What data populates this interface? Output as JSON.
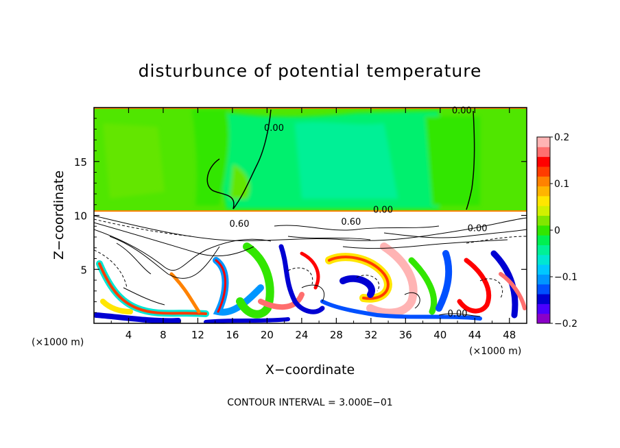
{
  "chart_data": {
    "type": "heatmap",
    "title": "disturbunce of potential temperature",
    "xlabel": "X−coordinate",
    "ylabel": "Z−coordinate",
    "x_unit_left": "(×1000 m)",
    "x_unit_right": "(×1000 m)",
    "footer": "CONTOUR INTERVAL = 3.000E−01",
    "xlim": [
      0,
      50
    ],
    "ylim": [
      0,
      20
    ],
    "x_ticks": [
      4,
      8,
      12,
      16,
      20,
      24,
      28,
      32,
      36,
      40,
      44,
      48
    ],
    "y_ticks": [
      5,
      10,
      15
    ],
    "colorbar": {
      "range": [
        -0.2,
        0.2
      ],
      "tick_values": [
        0.2,
        0.1,
        0,
        -0.1,
        -0.2
      ],
      "tick_labels": [
        "0.2",
        "0.1",
        "0",
        "−0.1",
        "−0.2"
      ],
      "colors": [
        "#8a00c8",
        "#4b00ff",
        "#0000d2",
        "#0050ff",
        "#0096ff",
        "#00c8ff",
        "#00e6d2",
        "#00f096",
        "#00f050",
        "#32e600",
        "#82e600",
        "#d2f000",
        "#ffe600",
        "#ffb400",
        "#ff8200",
        "#ff3c00",
        "#ff0000",
        "#ff6e6e",
        "#ffb4b4"
      ]
    },
    "contour_labels": [
      {
        "text": "0.00",
        "x": 42.5,
        "z": 19.7
      },
      {
        "text": "0.00",
        "x": 20.8,
        "z": 18.1
      },
      {
        "text": "0.00",
        "x": 33.4,
        "z": 10.5
      },
      {
        "text": "0.60",
        "x": 16.8,
        "z": 9.2
      },
      {
        "text": "0.60",
        "x": 29.7,
        "z": 9.4
      },
      {
        "text": "0.00",
        "x": 44.3,
        "z": 8.8
      },
      {
        "text": "0.00",
        "x": 42.0,
        "z": 0.9
      }
    ]
  }
}
